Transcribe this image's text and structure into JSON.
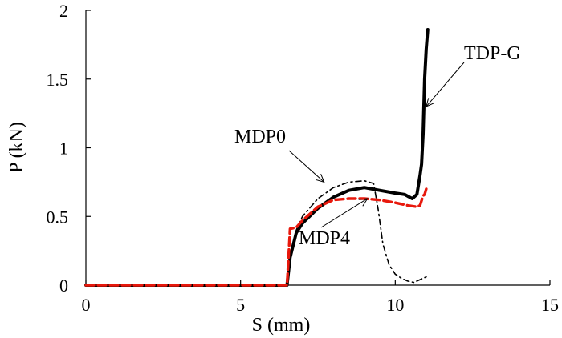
{
  "chart_data": {
    "type": "line",
    "title": "",
    "xlabel": "S (mm)",
    "ylabel": "P (kN)",
    "xlim": [
      0,
      15
    ],
    "ylim": [
      0,
      2
    ],
    "xticks": [
      0,
      5,
      10,
      15
    ],
    "xtick_labels": [
      "0",
      "5",
      "10",
      "15"
    ],
    "yticks": [
      0,
      0.5,
      1,
      1.5,
      2
    ],
    "ytick_labels": [
      "0",
      "0.5",
      "1",
      "1.5",
      "2"
    ],
    "grid": false,
    "legend": "none",
    "series": [
      {
        "name": "TDP-G",
        "color": "#000000",
        "style": "solid-thick",
        "x": [
          0,
          6.5,
          6.6,
          6.8,
          7.0,
          7.5,
          8.0,
          8.5,
          9.0,
          9.5,
          10.0,
          10.3,
          10.55,
          10.7,
          10.8,
          10.85,
          10.9,
          10.95,
          11.0,
          11.05
        ],
        "y": [
          0,
          0,
          0.2,
          0.38,
          0.45,
          0.56,
          0.64,
          0.69,
          0.71,
          0.69,
          0.67,
          0.66,
          0.63,
          0.66,
          0.8,
          0.88,
          1.1,
          1.5,
          1.72,
          1.86
        ]
      },
      {
        "name": "MDP0",
        "color": "#000000",
        "style": "dash-dot",
        "x": [
          6.6,
          6.8,
          7.0,
          7.5,
          8.0,
          8.5,
          9.0,
          9.3,
          9.45,
          9.6,
          9.8,
          10.0,
          10.2,
          10.4,
          10.6,
          10.8,
          11.0
        ],
        "y": [
          0.2,
          0.4,
          0.5,
          0.63,
          0.71,
          0.75,
          0.76,
          0.74,
          0.55,
          0.3,
          0.15,
          0.08,
          0.05,
          0.03,
          0.02,
          0.04,
          0.06
        ]
      },
      {
        "name": "MDP4",
        "color": "#e8180c",
        "style": "dashed",
        "x": [
          0,
          6.5,
          6.55,
          6.6,
          6.8,
          7.0,
          7.5,
          8.0,
          8.5,
          9.0,
          9.5,
          10.0,
          10.4,
          10.7,
          10.8,
          10.9,
          10.95,
          11.0
        ],
        "y": [
          0,
          0,
          0.2,
          0.41,
          0.42,
          0.47,
          0.57,
          0.62,
          0.63,
          0.63,
          0.62,
          0.6,
          0.58,
          0.57,
          0.58,
          0.65,
          0.66,
          0.7
        ]
      }
    ],
    "annotations": [
      {
        "text": "TDP-G",
        "target_series": "TDP-G",
        "target": [
          11.0,
          1.3
        ]
      },
      {
        "text": "MDP0",
        "target_series": "MDP0",
        "target": [
          7.7,
          0.75
        ]
      },
      {
        "text": "MDP4",
        "target_series": "MDP4",
        "target": [
          9.1,
          0.63
        ]
      }
    ]
  }
}
